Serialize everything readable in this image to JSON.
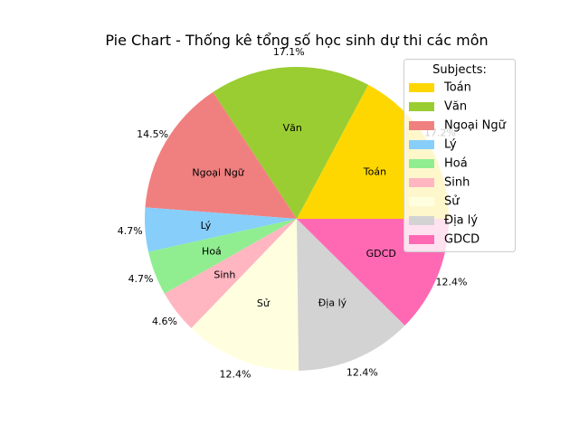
{
  "chart_data": {
    "type": "pie",
    "title": "Pie Chart - Thống kê tổng số học sinh dự thi các môn",
    "legend_title": "Subjects:",
    "legend_position": "top-right",
    "slices": [
      {
        "label": "Toán",
        "pct_label": "17.2%",
        "value": 17.2,
        "color": "#ffd700"
      },
      {
        "label": "Văn",
        "pct_label": "17.1%",
        "value": 17.1,
        "color": "#9acd32"
      },
      {
        "label": "Ngoại Ngữ",
        "pct_label": "14.5%",
        "value": 14.5,
        "color": "#f08080"
      },
      {
        "label": "Lý",
        "pct_label": "4.7%",
        "value": 4.7,
        "color": "#87cefa"
      },
      {
        "label": "Hoá",
        "pct_label": "4.7%",
        "value": 4.7,
        "color": "#90ee90"
      },
      {
        "label": "Sinh",
        "pct_label": "4.6%",
        "value": 4.6,
        "color": "#ffb6c1"
      },
      {
        "label": "Sử",
        "pct_label": "12.4%",
        "value": 12.4,
        "color": "#ffffe0"
      },
      {
        "label": "Địa lý",
        "pct_label": "12.4%",
        "value": 12.4,
        "color": "#d3d3d3"
      },
      {
        "label": "GDCD",
        "pct_label": "12.4%",
        "value": 12.4,
        "color": "#ff69b4"
      }
    ]
  }
}
